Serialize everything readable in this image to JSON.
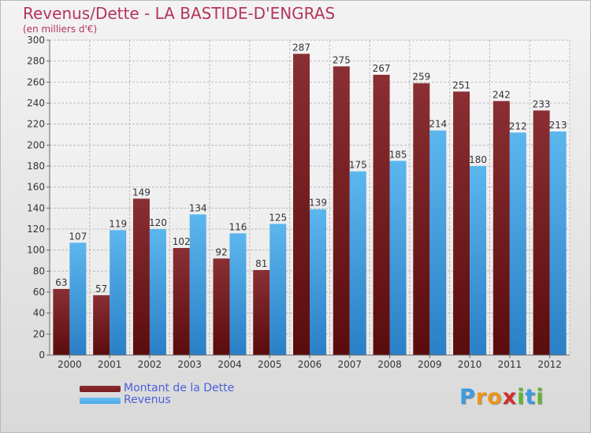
{
  "title": "Revenus/Dette - LA BASTIDE-D'ENGRAS",
  "subtitle": "(en milliers d'€)",
  "logo": {
    "letters": [
      "P",
      "r",
      "o",
      "x",
      "i",
      "t",
      "i"
    ],
    "colors": [
      "#3c9be0",
      "#e8961c",
      "#e8961c",
      "#d02c2c",
      "#62b430",
      "#3c9be0",
      "#62b430"
    ]
  },
  "legend": [
    {
      "label": "Montant de la Dette",
      "color": "#7a1a1a"
    },
    {
      "label": "Revenus",
      "color": "#4aa8e8"
    }
  ],
  "chart_data": {
    "type": "bar",
    "categories": [
      "2000",
      "2001",
      "2002",
      "2003",
      "2004",
      "2005",
      "2006",
      "2007",
      "2008",
      "2009",
      "2010",
      "2011",
      "2012"
    ],
    "series": [
      {
        "name": "Montant de la Dette",
        "color": "#7a1a1a",
        "values": [
          63,
          57,
          149,
          102,
          92,
          81,
          287,
          275,
          267,
          259,
          251,
          242,
          233
        ]
      },
      {
        "name": "Revenus",
        "color": "#4aa8e8",
        "values": [
          107,
          119,
          120,
          134,
          116,
          125,
          139,
          175,
          185,
          214,
          180,
          212,
          213
        ]
      }
    ],
    "ylim": [
      0,
      300
    ],
    "yticks": [
      0,
      20,
      40,
      60,
      80,
      100,
      120,
      140,
      160,
      180,
      200,
      220,
      240,
      260,
      280,
      300
    ],
    "grid": true,
    "legend_position": "bottom-left"
  }
}
